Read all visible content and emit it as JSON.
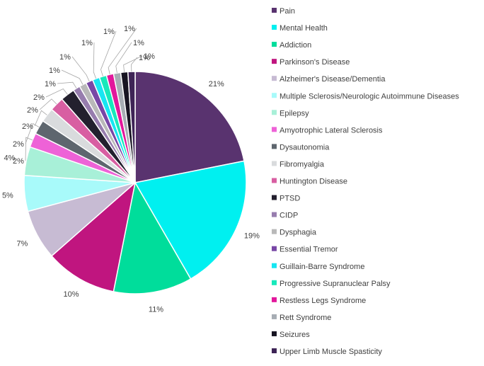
{
  "chart_data": {
    "type": "pie",
    "title": "",
    "legend_position": "right",
    "series": [
      {
        "name": "Pain",
        "value": 21,
        "label": "21%",
        "color": "#59336f"
      },
      {
        "name": "Mental Health",
        "value": 19,
        "label": "19%",
        "color": "#00f0f0"
      },
      {
        "name": "Addiction",
        "value": 11,
        "label": "11%",
        "color": "#00dd9b"
      },
      {
        "name": "Parkinson's Disease",
        "value": 10,
        "label": "10%",
        "color": "#c0157f"
      },
      {
        "name": "Alzheimer's Disease/Dementia",
        "value": 7,
        "label": "7%",
        "color": "#c7bbd3"
      },
      {
        "name": "Multiple Sclerosis/Neurologic Autoimmune  Diseases",
        "value": 5,
        "label": "5%",
        "color": "#a8fafa"
      },
      {
        "name": "Epilepsy",
        "value": 4,
        "label": "4%",
        "color": "#a8f0d8"
      },
      {
        "name": "Amyotrophic Lateral Sclerosis",
        "value": 2,
        "label": "2%",
        "color": "#ee62d7"
      },
      {
        "name": "Dysautonomia",
        "value": 2,
        "label": "2%",
        "color": "#5e666e"
      },
      {
        "name": "Fibromyalgia",
        "value": 2,
        "label": "2%",
        "color": "#d9dbdd"
      },
      {
        "name": "Huntington Disease",
        "value": 2,
        "label": "2%",
        "color": "#d85fa2"
      },
      {
        "name": "PTSD",
        "value": 2,
        "label": "2%",
        "color": "#23202e"
      },
      {
        "name": "CIDP",
        "value": 1,
        "label": "1%",
        "color": "#977dae"
      },
      {
        "name": "Dysphagia",
        "value": 1,
        "label": "1%",
        "color": "#b9b9b9"
      },
      {
        "name": "Essential Tremor",
        "value": 1,
        "label": "1%",
        "color": "#7847a6"
      },
      {
        "name": "Guillain-Barre Syndrome",
        "value": 1,
        "label": "1%",
        "color": "#17e6f2"
      },
      {
        "name": "Progressive Supranuclear Palsy",
        "value": 1,
        "label": "1%",
        "color": "#17e9bb"
      },
      {
        "name": "Restless Legs Syndrome",
        "value": 1,
        "label": "1%",
        "color": "#e2189c"
      },
      {
        "name": "Rett Syndrome",
        "value": 1,
        "label": "1%",
        "color": "#a7adb4"
      },
      {
        "name": "Seizures",
        "value": 1,
        "label": "1%",
        "color": "#171422"
      },
      {
        "name": "Upper Limb Muscle Spasticity",
        "value": 1,
        "label": "1%",
        "color": "#3e2456"
      }
    ]
  }
}
